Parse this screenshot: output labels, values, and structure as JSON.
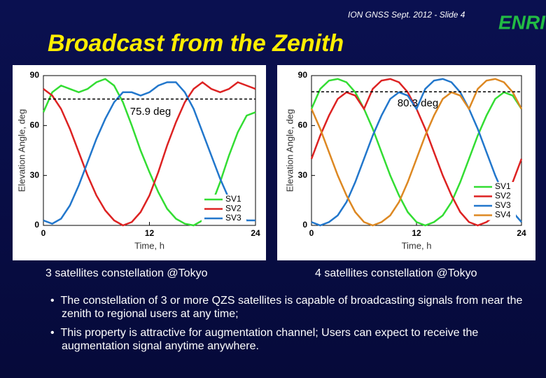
{
  "header": {
    "slide_label": "ION GNSS Sept. 2012 - Slide 4",
    "logo": "ENRI"
  },
  "title": "Broadcast from the Zenith",
  "captions": [
    "3 satellites constellation @Tokyo",
    "4 satellites constellation @Tokyo"
  ],
  "bullets": [
    "The constellation of 3 or more QZS satellites is capable of broadcasting signals from near the zenith to regional users at any time;",
    "This property is attractive for augmentation channel; Users can expect to receive the augmentation signal anytime anywhere."
  ],
  "chart_data": [
    {
      "type": "line",
      "x_label": "Time, h",
      "y_label": "Elevation Angle, deg",
      "x": [
        0,
        1,
        2,
        3,
        4,
        5,
        6,
        7,
        8,
        9,
        10,
        11,
        12,
        13,
        14,
        15,
        16,
        17,
        18,
        19,
        20,
        21,
        22,
        23,
        24
      ],
      "xlim": [
        0,
        24
      ],
      "xticks": [
        0,
        12,
        24
      ],
      "ylim": [
        0,
        90
      ],
      "yticks": [
        0,
        30,
        60,
        90
      ],
      "threshold": {
        "value": 75.9,
        "label": "75.9 deg"
      },
      "series": [
        {
          "name": "SV1",
          "color": "#33dd33",
          "values": [
            68,
            80,
            84,
            82,
            80,
            82,
            86,
            88,
            84,
            74,
            60,
            45,
            32,
            20,
            10,
            4,
            1,
            0,
            3,
            12,
            26,
            42,
            56,
            66,
            68
          ]
        },
        {
          "name": "SV2",
          "color": "#dd2222",
          "values": [
            82,
            78,
            70,
            58,
            44,
            30,
            18,
            9,
            3,
            0,
            2,
            8,
            18,
            32,
            48,
            62,
            74,
            82,
            86,
            82,
            80,
            82,
            86,
            84,
            82
          ]
        },
        {
          "name": "SV3",
          "color": "#2277cc",
          "values": [
            3,
            1,
            4,
            12,
            24,
            38,
            52,
            64,
            74,
            80,
            80,
            78,
            80,
            84,
            86,
            86,
            80,
            70,
            56,
            42,
            28,
            16,
            8,
            3,
            3
          ]
        }
      ]
    },
    {
      "type": "line",
      "x_label": "Time, h",
      "y_label": "Elevation Angle, deg",
      "x": [
        0,
        1,
        2,
        3,
        4,
        5,
        6,
        7,
        8,
        9,
        10,
        11,
        12,
        13,
        14,
        15,
        16,
        17,
        18,
        19,
        20,
        21,
        22,
        23,
        24
      ],
      "xlim": [
        0,
        24
      ],
      "xticks": [
        0,
        12,
        24
      ],
      "ylim": [
        0,
        90
      ],
      "yticks": [
        0,
        30,
        60,
        90
      ],
      "threshold": {
        "value": 80.3,
        "label": "80.3 deg"
      },
      "series": [
        {
          "name": "SV1",
          "color": "#33dd33",
          "values": [
            70,
            82,
            87,
            88,
            86,
            80,
            70,
            58,
            44,
            30,
            18,
            8,
            2,
            0,
            2,
            6,
            14,
            26,
            40,
            54,
            66,
            76,
            80,
            78,
            70
          ]
        },
        {
          "name": "SV2",
          "color": "#dd2222",
          "values": [
            40,
            54,
            66,
            76,
            80,
            78,
            70,
            82,
            87,
            88,
            86,
            80,
            70,
            58,
            44,
            30,
            18,
            8,
            2,
            0,
            2,
            6,
            14,
            26,
            40
          ]
        },
        {
          "name": "SV3",
          "color": "#2277cc",
          "values": [
            2,
            0,
            2,
            6,
            14,
            26,
            40,
            54,
            66,
            76,
            80,
            78,
            70,
            82,
            87,
            88,
            86,
            80,
            70,
            58,
            44,
            30,
            18,
            8,
            2
          ]
        },
        {
          "name": "SV4",
          "color": "#dd8822",
          "values": [
            70,
            58,
            44,
            30,
            18,
            8,
            2,
            0,
            2,
            6,
            14,
            26,
            40,
            54,
            66,
            76,
            80,
            78,
            70,
            82,
            87,
            88,
            86,
            80,
            70
          ]
        }
      ]
    }
  ]
}
